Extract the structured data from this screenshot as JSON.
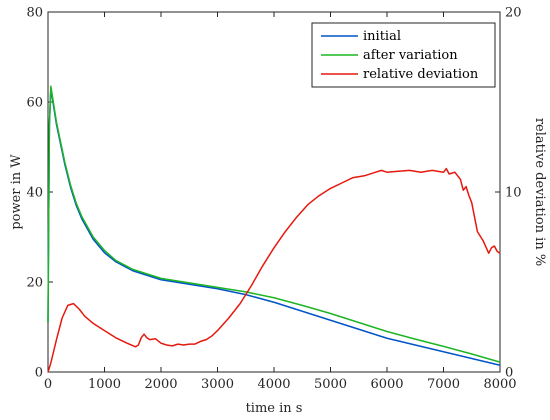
{
  "chart_data": {
    "type": "line",
    "title": "",
    "xlabel": "time in s",
    "ylabel_left": "power in W",
    "ylabel_right": "relative deviation in %",
    "xlim": [
      0,
      8000
    ],
    "ylim_left": [
      0,
      80
    ],
    "ylim_right": [
      0,
      20
    ],
    "x_ticks": [
      "0",
      "1000",
      "2000",
      "3000",
      "4000",
      "5000",
      "6000",
      "7000",
      "8000"
    ],
    "y_left_ticks": [
      "0",
      "20",
      "40",
      "60",
      "80"
    ],
    "y_right_ticks": [
      "0",
      "10",
      "20"
    ],
    "grid": false,
    "legend_position": "top-right",
    "series": [
      {
        "name": "initial",
        "axis": "left",
        "color": "#0055c8",
        "points": [
          [
            0,
            11
          ],
          [
            10,
            30
          ],
          [
            25,
            55
          ],
          [
            50,
            63
          ],
          [
            100,
            59
          ],
          [
            150,
            55
          ],
          [
            200,
            52
          ],
          [
            300,
            46
          ],
          [
            400,
            41
          ],
          [
            500,
            37
          ],
          [
            600,
            34
          ],
          [
            800,
            29.5
          ],
          [
            1000,
            26.5
          ],
          [
            1200,
            24.5
          ],
          [
            1500,
            22.5
          ],
          [
            2000,
            20.5
          ],
          [
            2500,
            19.5
          ],
          [
            3000,
            18.5
          ],
          [
            3500,
            17.2
          ],
          [
            4000,
            15.5
          ],
          [
            4500,
            13.5
          ],
          [
            5000,
            11.5
          ],
          [
            5500,
            9.5
          ],
          [
            6000,
            7.5
          ],
          [
            6500,
            6
          ],
          [
            7000,
            4.5
          ],
          [
            7500,
            3
          ],
          [
            8000,
            1.5
          ]
        ]
      },
      {
        "name": "after variation",
        "axis": "left",
        "color": "#1db524",
        "points": [
          [
            0,
            11
          ],
          [
            10,
            30
          ],
          [
            25,
            55
          ],
          [
            50,
            63.5
          ],
          [
            100,
            59.5
          ],
          [
            150,
            55.5
          ],
          [
            200,
            52.5
          ],
          [
            300,
            46.5
          ],
          [
            400,
            41.5
          ],
          [
            500,
            37.5
          ],
          [
            600,
            34.5
          ],
          [
            800,
            30
          ],
          [
            1000,
            27
          ],
          [
            1200,
            24.8
          ],
          [
            1500,
            22.8
          ],
          [
            2000,
            20.8
          ],
          [
            2500,
            19.8
          ],
          [
            3000,
            18.8
          ],
          [
            3500,
            17.8
          ],
          [
            4000,
            16.5
          ],
          [
            4500,
            14.8
          ],
          [
            5000,
            13
          ],
          [
            5500,
            11
          ],
          [
            6000,
            9
          ],
          [
            6500,
            7.3
          ],
          [
            7000,
            5.7
          ],
          [
            7500,
            4
          ],
          [
            8000,
            2.2
          ]
        ]
      },
      {
        "name": "relative deviation",
        "axis": "right",
        "color": "#e6190f",
        "points": [
          [
            0,
            0
          ],
          [
            50,
            0.5
          ],
          [
            150,
            1.8
          ],
          [
            250,
            3
          ],
          [
            350,
            3.7
          ],
          [
            450,
            3.8
          ],
          [
            550,
            3.5
          ],
          [
            650,
            3.1
          ],
          [
            800,
            2.7
          ],
          [
            1000,
            2.3
          ],
          [
            1200,
            1.9
          ],
          [
            1400,
            1.6
          ],
          [
            1550,
            1.4
          ],
          [
            1600,
            1.5
          ],
          [
            1650,
            1.9
          ],
          [
            1700,
            2.1
          ],
          [
            1750,
            1.9
          ],
          [
            1800,
            1.8
          ],
          [
            1900,
            1.85
          ],
          [
            2000,
            1.6
          ],
          [
            2100,
            1.5
          ],
          [
            2200,
            1.45
          ],
          [
            2300,
            1.55
          ],
          [
            2400,
            1.5
          ],
          [
            2500,
            1.55
          ],
          [
            2600,
            1.55
          ],
          [
            2700,
            1.7
          ],
          [
            2800,
            1.8
          ],
          [
            2900,
            2.0
          ],
          [
            3000,
            2.3
          ],
          [
            3200,
            3.0
          ],
          [
            3400,
            3.8
          ],
          [
            3600,
            4.8
          ],
          [
            3800,
            5.9
          ],
          [
            4000,
            6.9
          ],
          [
            4200,
            7.8
          ],
          [
            4400,
            8.6
          ],
          [
            4600,
            9.3
          ],
          [
            4800,
            9.8
          ],
          [
            5000,
            10.2
          ],
          [
            5200,
            10.5
          ],
          [
            5400,
            10.8
          ],
          [
            5600,
            10.9
          ],
          [
            5800,
            11.1
          ],
          [
            5900,
            11.2
          ],
          [
            6000,
            11.1
          ],
          [
            6200,
            11.15
          ],
          [
            6400,
            11.2
          ],
          [
            6600,
            11.1
          ],
          [
            6800,
            11.2
          ],
          [
            7000,
            11.1
          ],
          [
            7050,
            11.3
          ],
          [
            7100,
            11.0
          ],
          [
            7200,
            11.1
          ],
          [
            7250,
            10.9
          ],
          [
            7300,
            10.7
          ],
          [
            7350,
            10.1
          ],
          [
            7400,
            10.3
          ],
          [
            7450,
            9.8
          ],
          [
            7500,
            9.4
          ],
          [
            7550,
            8.6
          ],
          [
            7600,
            7.8
          ],
          [
            7700,
            7.3
          ],
          [
            7800,
            6.6
          ],
          [
            7850,
            6.9
          ],
          [
            7900,
            7.0
          ],
          [
            7950,
            6.7
          ],
          [
            8000,
            6.6
          ]
        ]
      }
    ]
  }
}
